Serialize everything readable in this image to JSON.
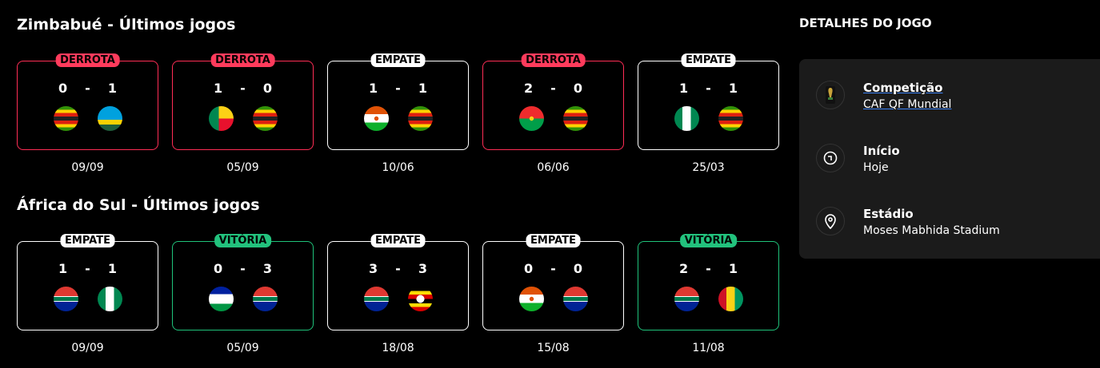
{
  "sections": [
    {
      "title": "Zimbabué - Últimos jogos",
      "matches": [
        {
          "result": "DERROTA",
          "type": "loss",
          "home": "0",
          "sep": "-",
          "away": "1",
          "home_flag": "zimbabwe",
          "away_flag": "rwanda",
          "date": "09/09"
        },
        {
          "result": "DERROTA",
          "type": "loss",
          "home": "1",
          "sep": "-",
          "away": "0",
          "home_flag": "benin",
          "away_flag": "zimbabwe",
          "date": "05/09"
        },
        {
          "result": "EMPATE",
          "type": "draw",
          "home": "1",
          "sep": "-",
          "away": "1",
          "home_flag": "niger",
          "away_flag": "zimbabwe",
          "date": "10/06"
        },
        {
          "result": "DERROTA",
          "type": "loss",
          "home": "2",
          "sep": "-",
          "away": "0",
          "home_flag": "burkina-faso",
          "away_flag": "zimbabwe",
          "date": "06/06"
        },
        {
          "result": "EMPATE",
          "type": "draw",
          "home": "1",
          "sep": "-",
          "away": "1",
          "home_flag": "nigeria",
          "away_flag": "zimbabwe",
          "date": "25/03"
        }
      ]
    },
    {
      "title": "África do Sul - Últimos jogos",
      "matches": [
        {
          "result": "EMPATE",
          "type": "draw",
          "home": "1",
          "sep": "-",
          "away": "1",
          "home_flag": "south-africa",
          "away_flag": "nigeria",
          "date": "09/09"
        },
        {
          "result": "VITÓRIA",
          "type": "win",
          "home": "0",
          "sep": "-",
          "away": "3",
          "home_flag": "lesotho",
          "away_flag": "south-africa",
          "date": "05/09"
        },
        {
          "result": "EMPATE",
          "type": "draw",
          "home": "3",
          "sep": "-",
          "away": "3",
          "home_flag": "south-africa",
          "away_flag": "uganda",
          "date": "18/08"
        },
        {
          "result": "EMPATE",
          "type": "draw",
          "home": "0",
          "sep": "-",
          "away": "0",
          "home_flag": "niger",
          "away_flag": "south-africa",
          "date": "15/08"
        },
        {
          "result": "VITÓRIA",
          "type": "win",
          "home": "2",
          "sep": "-",
          "away": "1",
          "home_flag": "south-africa",
          "away_flag": "guinea",
          "date": "11/08"
        }
      ]
    }
  ],
  "details": {
    "title": "DETALHES DO JOGO",
    "competition": {
      "label": "Competição",
      "value": "CAF QF Mundial",
      "icon": "world-cup-trophy-icon"
    },
    "start": {
      "label": "Início",
      "value": "Hoje",
      "icon": "clock-icon"
    },
    "stadium": {
      "label": "Estádio",
      "value": "Moses Mabhida Stadium",
      "icon": "location-pin-icon"
    }
  }
}
